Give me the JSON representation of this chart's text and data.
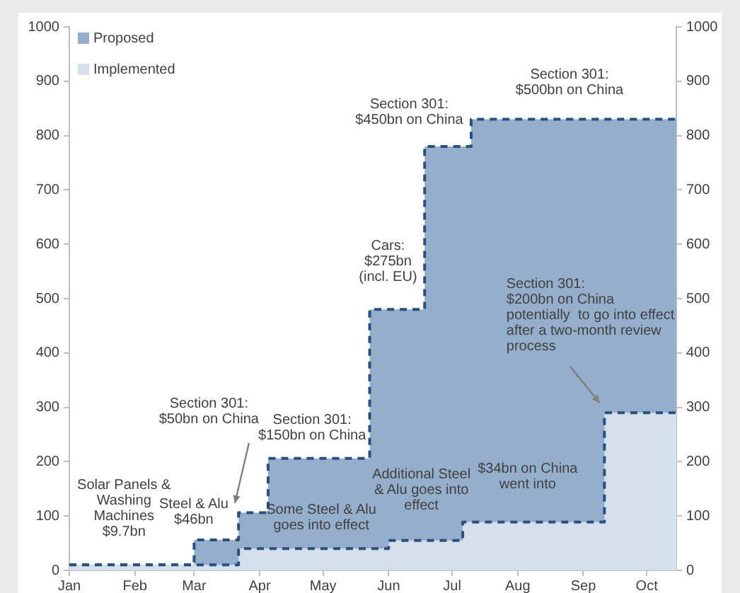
{
  "chart_data": {
    "type": "area",
    "series": [
      {
        "name": "Proposed",
        "color": "#94aecb",
        "x": [
          "--01-01",
          "--03-01",
          "--03-01",
          "--03-22",
          "--03-22",
          "--04-05",
          "--04-05",
          "--05-23",
          "--05-23",
          "--06-18",
          "--06-18",
          "--07-10",
          "--07-10",
          "--10-15"
        ],
        "values": [
          10,
          10,
          56,
          56,
          106,
          106,
          206,
          206,
          480,
          480,
          780,
          780,
          830,
          830
        ]
      },
      {
        "name": "Implemented",
        "color": "#d6e0ec",
        "x": [
          "--01-01",
          "--03-22",
          "--03-22",
          "--06-01",
          "--06-01",
          "--07-06",
          "--07-06",
          "--09-11",
          "--09-11",
          "--10-15"
        ],
        "values": [
          10,
          10,
          40,
          40,
          55,
          55,
          89,
          89,
          290,
          290
        ]
      }
    ],
    "xlim": [
      "--01-01",
      "--10-15"
    ],
    "xticks": [
      {
        "value": "--01-01",
        "label": "Jan"
      },
      {
        "value": "--02-01",
        "label": "Feb"
      },
      {
        "value": "--03-01",
        "label": "Mar"
      },
      {
        "value": "--04-01",
        "label": "Apr"
      },
      {
        "value": "--05-01",
        "label": "May"
      },
      {
        "value": "--06-01",
        "label": "Jun"
      },
      {
        "value": "--07-01",
        "label": "Jul"
      },
      {
        "value": "--08-01",
        "label": "Aug"
      },
      {
        "value": "--09-01",
        "label": "Sep"
      },
      {
        "value": "--10-01",
        "label": "Oct"
      }
    ],
    "ylim": [
      0,
      1000
    ],
    "yticks": [
      0,
      100,
      200,
      300,
      400,
      500,
      600,
      700,
      800,
      900,
      1000
    ],
    "y2lim": [
      0,
      1000
    ],
    "y2ticks": [
      0,
      100,
      200,
      300,
      400,
      500,
      600,
      700,
      800,
      900,
      1000
    ],
    "grid": false,
    "legend": "top left",
    "marker": "none",
    "line_style": "dashed",
    "annotations": [
      "Solar Panels &\nWashing\nMachines\n$9.7bn",
      "Steel & Alu\n$46bn",
      {
        "text": "Section 301:\n$50bn on China",
        "x": "--03-22",
        "y": 106
      },
      "Section 301:\n$150bn on China",
      "Some Steel & Alu\ngoes into effect",
      "Cars:\n$275bn\n(incl. EU)",
      "Section 301:\n$450bn on China",
      "Section 301:\n$500bn on China",
      {
        "text": "Section 301:\n$200bn on China\npotentially  to go into effect\nafter a two-month review\nprocess",
        "x": "--09-11",
        "y": 290
      },
      "Additional Steel\n& Alu goes into\neffect",
      "$34bn on China\nwent into"
    ]
  }
}
